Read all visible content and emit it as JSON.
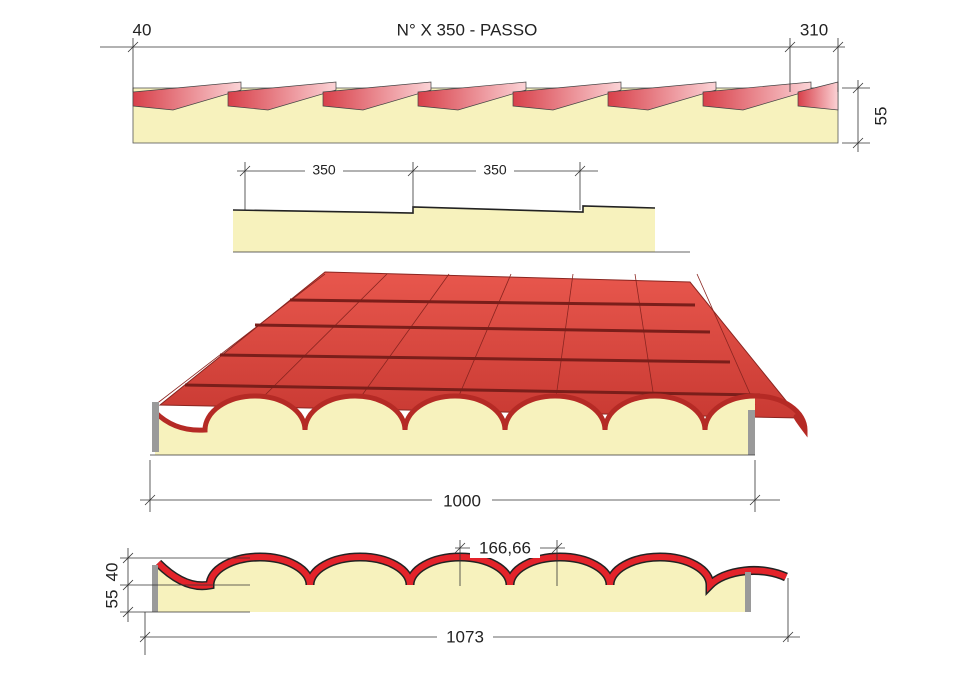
{
  "top_view": {
    "left_dim": "40",
    "span": "N° X 350 - PASSO",
    "right_dim": "310",
    "height": "55"
  },
  "detail": {
    "pitch_1": "350",
    "pitch_2": "350"
  },
  "perspective": {
    "width": "1000"
  },
  "section": {
    "pitch": "166,66",
    "wave_height": "40",
    "total_height": "55",
    "width": "1073"
  }
}
